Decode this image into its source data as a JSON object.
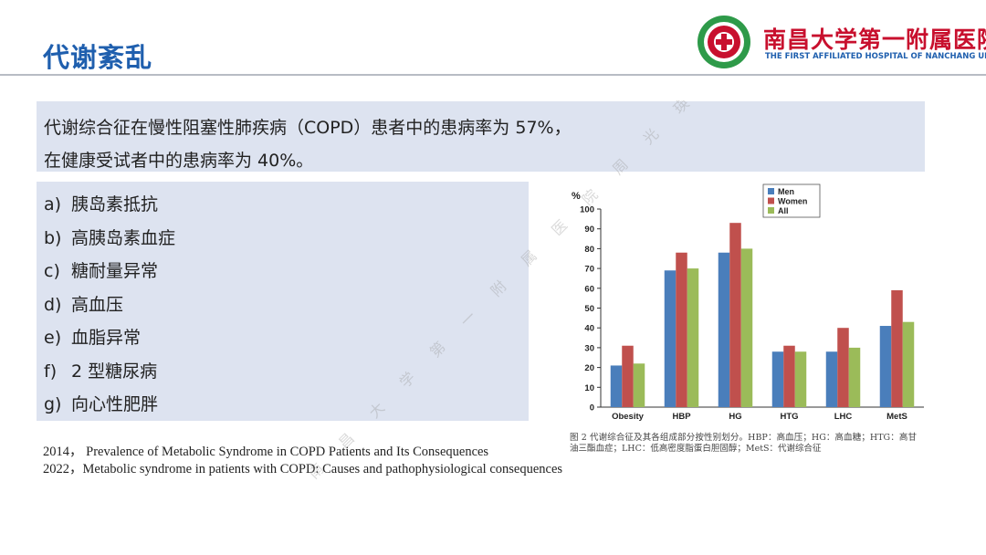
{
  "header": {
    "title": "代谢紊乱",
    "logo_cn": "南昌大学第一附属医院",
    "logo_en": "THE FIRST AFFILIATED HOSPITAL OF NANCHANG UNIVERSITY"
  },
  "summary": {
    "line1": "代谢综合征在慢性阻塞性肺疾病（COPD）患者中的患病率为 57%，",
    "line2": "在健康受试者中的患病率为 40%。"
  },
  "components": [
    {
      "marker": "a)",
      "text": "胰岛素抵抗"
    },
    {
      "marker": "b)",
      "text": "高胰岛素血症"
    },
    {
      "marker": "c)",
      "text": "糖耐量异常"
    },
    {
      "marker": "d)",
      "text": "高血压"
    },
    {
      "marker": "e)",
      "text": "血脂异常"
    },
    {
      "marker": "f)",
      "text": "2 型糖尿病"
    },
    {
      "marker": "g)",
      "text": "向心性肥胖"
    }
  ],
  "references": [
    "2014，  Prevalence of Metabolic Syndrome in COPD Patients and Its Consequences",
    "2022，Metabolic syndrome in patients with COPD: Causes and pathophysiological consequences"
  ],
  "caption": "图 2 代谢综合征及其各组成部分按性别划分。HBP：高血压；HG：高血糖；HTG：高甘油三酯血症；LHC：低高密度脂蛋白胆固醇；MetS：代谢综合征",
  "watermark": "南 昌 大 学 第 一 附 属 医 院 周 光 瑛",
  "colors": {
    "title": "#1f5fae",
    "box": "#dde3f0",
    "logo_red": "#c8102e",
    "logo_green": "#2e9a49"
  },
  "chart_data": {
    "type": "bar",
    "ylabel": "%",
    "ylim": [
      0,
      100
    ],
    "yticks": [
      0,
      10,
      20,
      30,
      40,
      50,
      60,
      70,
      80,
      90,
      100
    ],
    "categories": [
      "Obesity",
      "HBP",
      "HG",
      "HTG",
      "LHC",
      "MetS"
    ],
    "series": [
      {
        "name": "Men",
        "color": "#4a7ebb",
        "values": [
          21,
          69,
          78,
          28,
          28,
          41
        ]
      },
      {
        "name": "Women",
        "color": "#c0504d",
        "values": [
          31,
          78,
          93,
          31,
          40,
          59
        ]
      },
      {
        "name": "All",
        "color": "#9bbb59",
        "values": [
          22,
          70,
          80,
          28,
          30,
          43
        ]
      }
    ],
    "legend_position": "top-right",
    "grid": false
  }
}
